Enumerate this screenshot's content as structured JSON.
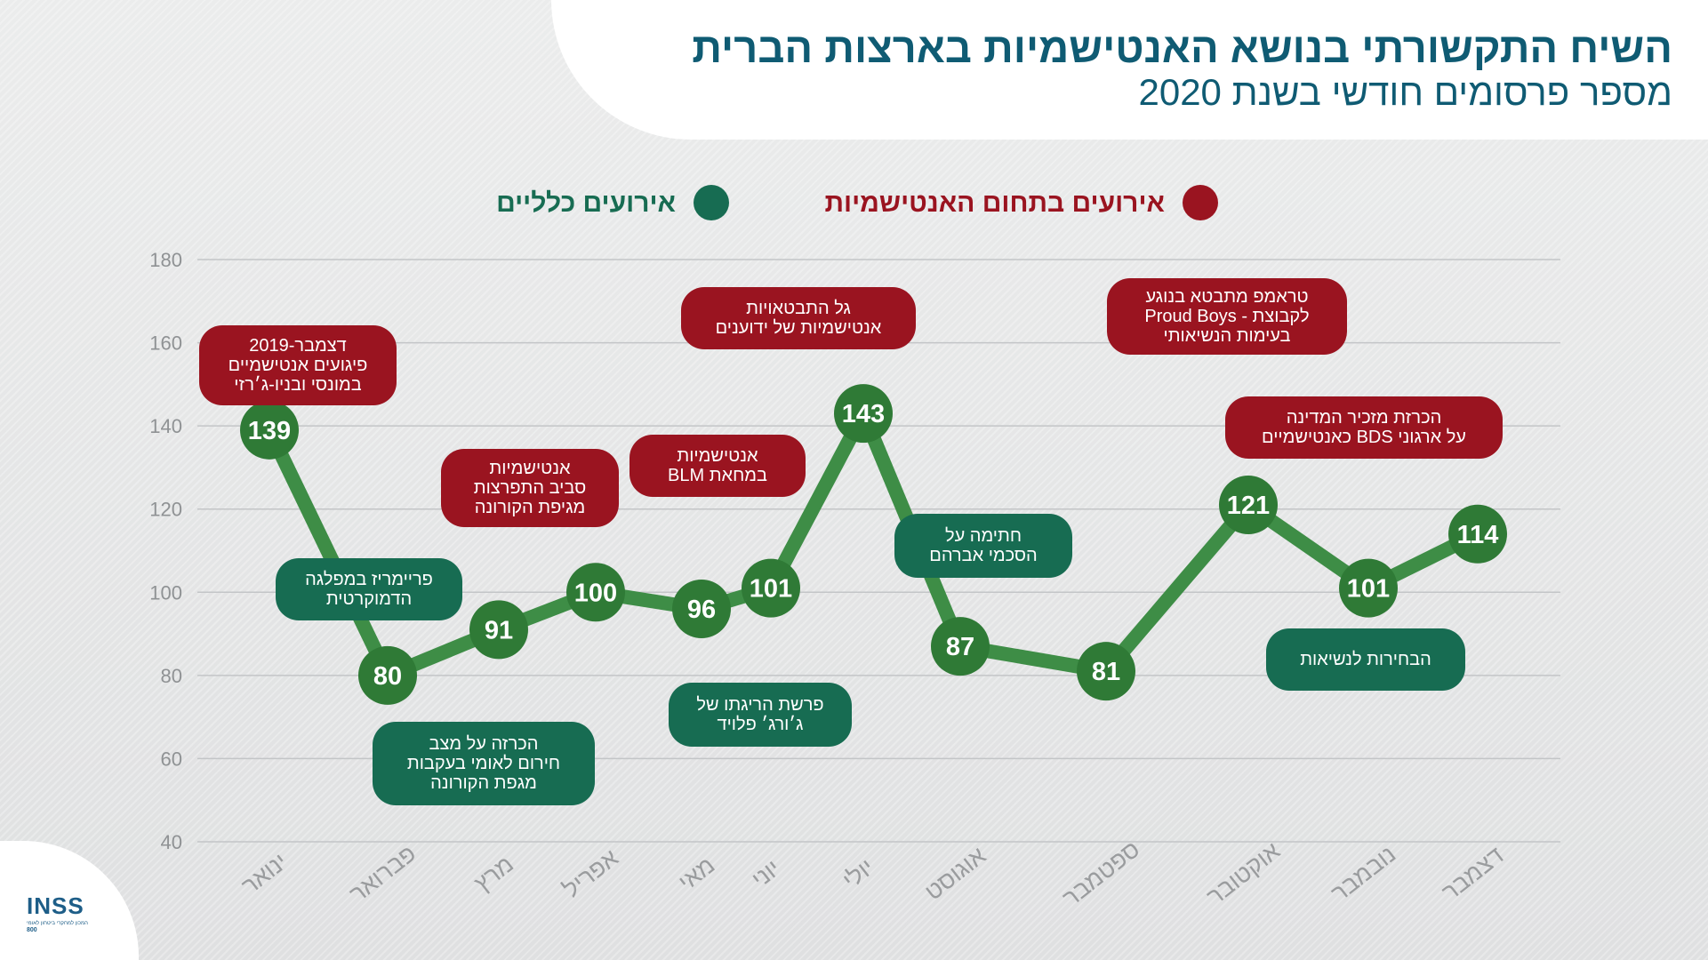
{
  "header": {
    "title": "השיח התקשורתי בנושא האנטישמיות בארצות הברית",
    "subtitle": "מספר פרסומים חודשי בשנת 2020"
  },
  "legend": {
    "antisemitic_label": "אירועים בתחום האנטישמיות",
    "general_label": "אירועים כלליים"
  },
  "colors": {
    "line": "#3e8d46",
    "marker": "#2f7a36",
    "antisemitic": "#9a1420",
    "general": "#176c52",
    "title": "#0f5b73"
  },
  "logo": {
    "mark": "INSS",
    "subtext": "המכון למחקרי ביטחון לאומי",
    "years": "800"
  },
  "chart_data": {
    "type": "line",
    "categories": [
      "ינואר",
      "פברואר",
      "מרץ",
      "אפריל",
      "מאי",
      "יוני",
      "יולי",
      "אוגוסט",
      "ספטמבר",
      "אוקטובר",
      "נובמבר",
      "דצמבר"
    ],
    "series": [
      {
        "values": [
          139,
          80,
          91,
          100,
          96,
          101,
          143,
          87,
          81,
          121,
          101,
          114
        ]
      }
    ],
    "ylim": [
      40,
      180
    ],
    "yticks": [
      40,
      60,
      80,
      100,
      120,
      140,
      160,
      180
    ],
    "grid": true,
    "legend_position": "top"
  },
  "annotations": {
    "antisemitic": [
      {
        "month": "ינואר",
        "text": "דצמבר-2019\nפיגועים אנטישמיים\nבמונסי ובניו-ג׳רזי"
      },
      {
        "month": "מרץ",
        "text": "אנטישמיות\nסביב התפרצות\nמגיפת הקורונה"
      },
      {
        "month": "מאי",
        "text": "אנטישמיות\nבמחאת BLM"
      },
      {
        "month": "יולי",
        "text": "גל התבטאויות\nאנטישמיות של ידוענים"
      },
      {
        "month": "אוקטובר",
        "text": "טראמפ מתבטא בנוגע\nלקבוצת - Proud Boys\nבעימות הנשיאותי"
      },
      {
        "month": "נובמבר",
        "text": "הכרזת מזכיר המדינה\nעל ארגוני BDS כאנטישמיים"
      }
    ],
    "general": [
      {
        "month": "פברואר",
        "text": "פריימריז במפלגה\nהדמוקרטית"
      },
      {
        "month": "פברואר",
        "text": "הכרזה על מצב\nחירום לאומי בעקבות\nמגפת הקורונה"
      },
      {
        "month": "מאי",
        "text": "פרשת הריגתו של\nג׳ורג׳ פלויד"
      },
      {
        "month": "אוגוסט",
        "text": "חתימה על\nהסכמי אברהם"
      },
      {
        "month": "נובמבר",
        "text": "הבחירות לנשיאות"
      }
    ]
  }
}
